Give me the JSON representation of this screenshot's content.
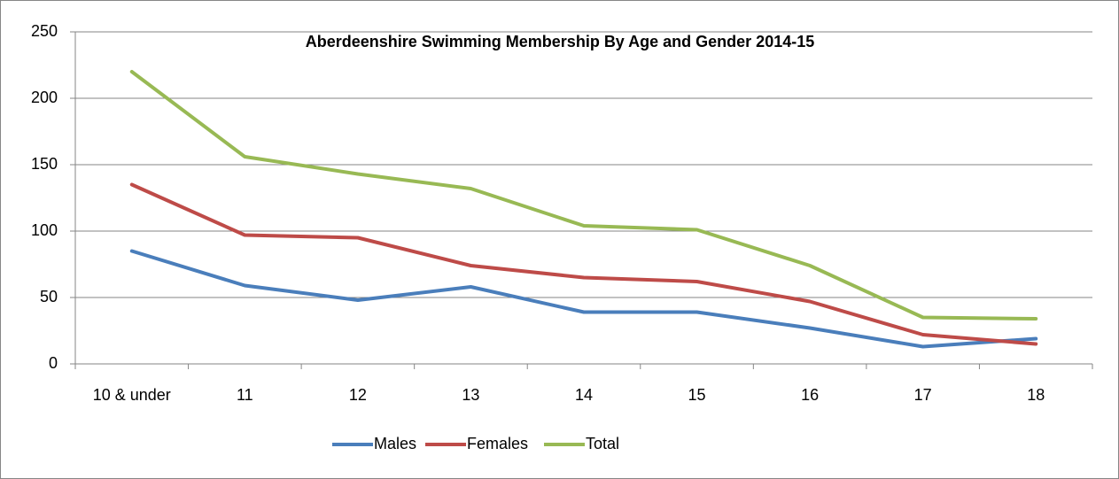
{
  "chart_data": {
    "type": "line",
    "title": "Aberdeenshire Swimming Membership By Age and Gender 2014-15",
    "categories": [
      "10 & under",
      "11",
      "12",
      "13",
      "14",
      "15",
      "16",
      "17",
      "18"
    ],
    "series": [
      {
        "name": "Males",
        "color": "#4a7ebb",
        "values": [
          85,
          59,
          48,
          58,
          39,
          39,
          27,
          13,
          19
        ]
      },
      {
        "name": "Females",
        "color": "#be4b48",
        "values": [
          135,
          97,
          95,
          74,
          65,
          62,
          47,
          22,
          15
        ]
      },
      {
        "name": "Total",
        "color": "#98b954",
        "values": [
          220,
          156,
          143,
          132,
          104,
          101,
          74,
          35,
          34
        ]
      }
    ],
    "ylim": [
      0,
      250
    ],
    "yticks": [
      0,
      50,
      100,
      150,
      200,
      250
    ],
    "grid": true,
    "legend": "bottom"
  }
}
